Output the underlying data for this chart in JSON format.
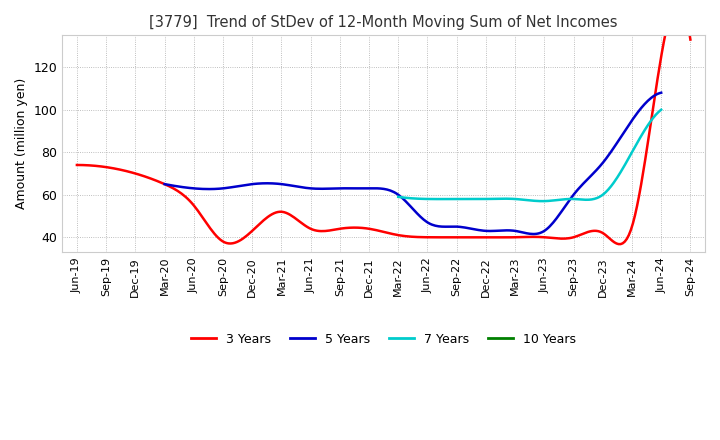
{
  "title": "[3779]  Trend of StDev of 12-Month Moving Sum of Net Incomes",
  "ylabel": "Amount (million yen)",
  "background_color": "#ffffff",
  "grid_color": "#aaaaaa",
  "ylim": [
    33,
    135
  ],
  "yticks": [
    40,
    60,
    80,
    100,
    120
  ],
  "series": {
    "3 Years": {
      "color": "#ff0000",
      "values": [
        74,
        73,
        70,
        65,
        55,
        38,
        43,
        52,
        44,
        44,
        44,
        41,
        40,
        40,
        40,
        40,
        40,
        40,
        42,
        45,
        125,
        133
      ]
    },
    "5 Years": {
      "color": "#0000cc",
      "values": [
        null,
        null,
        null,
        65,
        63,
        63,
        65,
        65,
        63,
        63,
        63,
        60,
        47,
        45,
        43,
        43,
        43,
        60,
        75,
        95,
        108,
        null
      ]
    },
    "7 Years": {
      "color": "#00cccc",
      "values": [
        null,
        null,
        null,
        null,
        null,
        null,
        null,
        null,
        null,
        null,
        null,
        59,
        58,
        58,
        58,
        58,
        57,
        58,
        60,
        80,
        100,
        null
      ]
    },
    "10 Years": {
      "color": "#008000",
      "values": [
        null,
        null,
        null,
        null,
        null,
        null,
        null,
        null,
        null,
        null,
        null,
        null,
        null,
        null,
        null,
        null,
        null,
        null,
        null,
        null,
        null,
        null
      ]
    }
  },
  "x_labels": [
    "Jun-19",
    "Sep-19",
    "Dec-19",
    "Mar-20",
    "Jun-20",
    "Sep-20",
    "Dec-20",
    "Mar-21",
    "Jun-21",
    "Sep-21",
    "Dec-21",
    "Mar-22",
    "Jun-22",
    "Sep-22",
    "Dec-22",
    "Mar-23",
    "Jun-23",
    "Sep-23",
    "Dec-23",
    "Mar-24",
    "Jun-24",
    "Sep-24"
  ],
  "legend_labels": [
    "3 Years",
    "5 Years",
    "7 Years",
    "10 Years"
  ],
  "legend_colors": [
    "#ff0000",
    "#0000cc",
    "#00cccc",
    "#008000"
  ]
}
